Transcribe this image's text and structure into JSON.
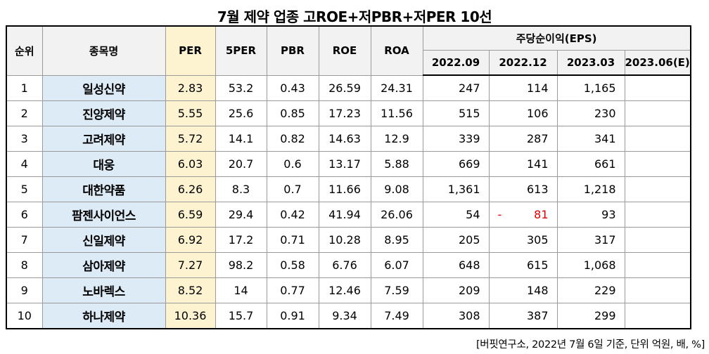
{
  "title": "7월  제약 업종 고ROE+저PBR+저PER 10선",
  "headers": {
    "rank": "순위",
    "name": "종목명",
    "per": "PER",
    "per5": "5PER",
    "pbr": "PBR",
    "roe": "ROE",
    "roa": "ROA",
    "eps_group": "주당순이익(EPS)",
    "eps_periods": [
      "2022.09",
      "2022.12",
      "2023.03",
      "2023.06(E)"
    ]
  },
  "rows": [
    {
      "rank": "1",
      "name": "일성신약",
      "per": "2.83",
      "per5": "53.2",
      "pbr": "0.43",
      "roe": "26.59",
      "roa": "24.31",
      "eps": [
        "247",
        "114",
        "1,165",
        ""
      ]
    },
    {
      "rank": "2",
      "name": "진양제약",
      "per": "5.55",
      "per5": "25.6",
      "pbr": "0.85",
      "roe": "17.23",
      "roa": "11.56",
      "eps": [
        "515",
        "106",
        "230",
        ""
      ]
    },
    {
      "rank": "3",
      "name": "고려제약",
      "per": "5.72",
      "per5": "14.1",
      "pbr": "0.82",
      "roe": "14.63",
      "roa": "12.9",
      "eps": [
        "339",
        "287",
        "341",
        ""
      ]
    },
    {
      "rank": "4",
      "name": "대웅",
      "per": "6.03",
      "per5": "20.7",
      "pbr": "0.6",
      "roe": "13.17",
      "roa": "5.88",
      "eps": [
        "669",
        "141",
        "661",
        ""
      ]
    },
    {
      "rank": "5",
      "name": "대한약품",
      "per": "6.26",
      "per5": "8.3",
      "pbr": "0.7",
      "roe": "11.66",
      "roa": "9.08",
      "eps": [
        "1,361",
        "613",
        "1,218",
        ""
      ]
    },
    {
      "rank": "6",
      "name": "팜젠사이언스",
      "per": "6.59",
      "per5": "29.4",
      "pbr": "0.42",
      "roe": "41.94",
      "roa": "26.06",
      "eps": [
        "54",
        "81",
        "93",
        ""
      ],
      "eps_negative": [
        false,
        true,
        false,
        false
      ]
    },
    {
      "rank": "7",
      "name": "신일제약",
      "per": "6.92",
      "per5": "17.2",
      "pbr": "0.71",
      "roe": "10.28",
      "roa": "8.95",
      "eps": [
        "205",
        "305",
        "317",
        ""
      ]
    },
    {
      "rank": "8",
      "name": "삼아제약",
      "per": "7.27",
      "per5": "98.2",
      "pbr": "0.58",
      "roe": "6.76",
      "roa": "6.07",
      "eps": [
        "648",
        "615",
        "1,068",
        ""
      ]
    },
    {
      "rank": "9",
      "name": "노바렉스",
      "per": "8.52",
      "per5": "14",
      "pbr": "0.77",
      "roe": "12.46",
      "roa": "7.59",
      "eps": [
        "209",
        "148",
        "229",
        ""
      ]
    },
    {
      "rank": "10",
      "name": "하나제약",
      "per": "10.36",
      "per5": "15.7",
      "pbr": "0.91",
      "roe": "9.34",
      "roa": "7.49",
      "eps": [
        "308",
        "387",
        "299",
        ""
      ]
    }
  ],
  "negative_sign": "-",
  "source": "[버핏연구소, 2022년 7월 6일 기준, 단위 억원, 배, %]",
  "colors": {
    "per_fill": "#fdf3d0",
    "name_fill": "#ddebf7",
    "header_fill": "#f2f2f2",
    "negative": "#e00000"
  }
}
